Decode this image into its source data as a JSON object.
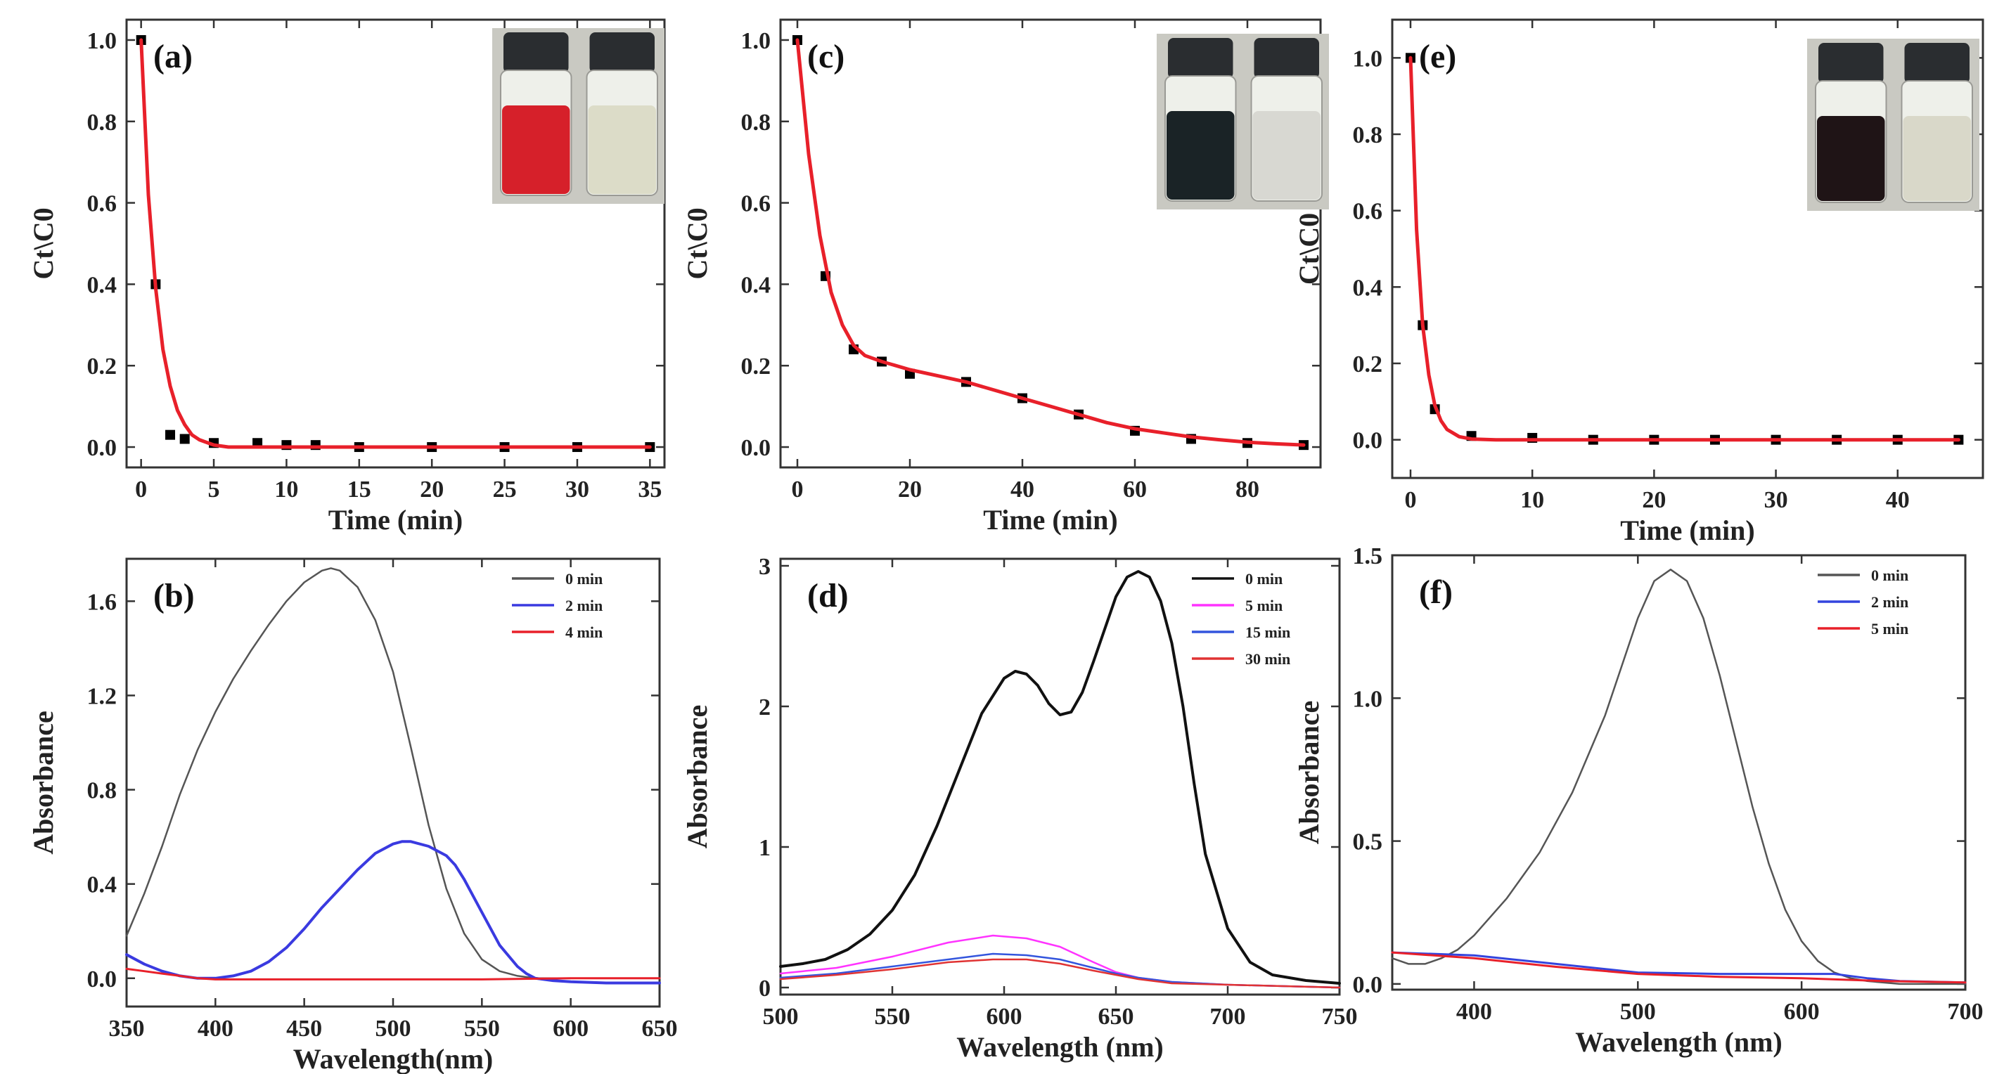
{
  "chart_data": [
    {
      "id": "a",
      "type": "scatter",
      "panel_label": "(a)",
      "xlabel": "Time (min)",
      "ylabel": "Ct\\C0",
      "xlim": [
        -1,
        36
      ],
      "ylim": [
        -0.05,
        1.05
      ],
      "xticks": [
        0,
        5,
        10,
        15,
        20,
        25,
        30,
        35
      ],
      "yticks": [
        0.0,
        0.2,
        0.4,
        0.6,
        0.8,
        1.0
      ],
      "xtick_labels": [
        "0",
        "5",
        "10",
        "15",
        "20",
        "25",
        "30",
        "35"
      ],
      "ytick_labels": [
        "0.0",
        "0.2",
        "0.4",
        "0.6",
        "0.8",
        "1.0"
      ],
      "series": [
        {
          "kind": "markers",
          "color": "#000000",
          "x": [
            0,
            1,
            2,
            3,
            5,
            8,
            10,
            12,
            15,
            20,
            25,
            30,
            35
          ],
          "y": [
            1.0,
            0.4,
            0.03,
            0.02,
            0.01,
            0.01,
            0.005,
            0.005,
            0.0,
            0.0,
            0.0,
            0.0,
            0.0
          ]
        },
        {
          "kind": "fit",
          "color": "#e8202a",
          "x": [
            0,
            0.5,
            1,
            1.5,
            2,
            2.5,
            3,
            3.5,
            4,
            5,
            6,
            8,
            10,
            15,
            20,
            25,
            30,
            35
          ],
          "y": [
            1.0,
            0.62,
            0.39,
            0.24,
            0.15,
            0.09,
            0.055,
            0.03,
            0.018,
            0.005,
            0.0,
            0.0,
            0.0,
            0.0,
            0.0,
            0.0,
            0.0,
            0.0
          ]
        }
      ],
      "inset": {
        "vials": [
          "#d6202a",
          "#dcdcc8"
        ]
      }
    },
    {
      "id": "c",
      "type": "scatter",
      "panel_label": "(c)",
      "xlabel": "Time (min)",
      "ylabel": "Ct\\C0",
      "xlim": [
        -3,
        93
      ],
      "ylim": [
        -0.05,
        1.05
      ],
      "xticks": [
        0,
        20,
        40,
        60,
        80
      ],
      "yticks": [
        0.0,
        0.2,
        0.4,
        0.6,
        0.8,
        1.0
      ],
      "xtick_labels": [
        "0",
        "20",
        "40",
        "60",
        "80"
      ],
      "ytick_labels": [
        "0.0",
        "0.2",
        "0.4",
        "0.6",
        "0.8",
        "1.0"
      ],
      "series": [
        {
          "kind": "markers",
          "color": "#000000",
          "x": [
            0,
            5,
            10,
            15,
            20,
            30,
            40,
            50,
            60,
            70,
            80,
            90
          ],
          "y": [
            1.0,
            0.42,
            0.24,
            0.21,
            0.18,
            0.16,
            0.12,
            0.08,
            0.04,
            0.02,
            0.01,
            0.005
          ]
        },
        {
          "kind": "fit",
          "color": "#e8202a",
          "x": [
            0,
            2,
            4,
            6,
            8,
            10,
            12,
            15,
            20,
            25,
            30,
            35,
            40,
            45,
            50,
            55,
            60,
            65,
            70,
            75,
            80,
            85,
            90
          ],
          "y": [
            1.0,
            0.72,
            0.52,
            0.38,
            0.3,
            0.25,
            0.225,
            0.21,
            0.19,
            0.175,
            0.16,
            0.14,
            0.12,
            0.1,
            0.08,
            0.06,
            0.045,
            0.035,
            0.025,
            0.018,
            0.012,
            0.008,
            0.005
          ]
        }
      ],
      "inset": {
        "vials": [
          "#1a2326",
          "#d8d8d2"
        ]
      }
    },
    {
      "id": "e",
      "type": "scatter",
      "panel_label": "(e)",
      "xlabel": "Time (min)",
      "ylabel": "Ct\\C0",
      "xlim": [
        -1.5,
        47
      ],
      "ylim": [
        -0.1,
        1.1
      ],
      "xticks": [
        0,
        10,
        20,
        30,
        40
      ],
      "yticks": [
        0.0,
        0.2,
        0.4,
        0.6,
        0.8,
        1.0
      ],
      "xtick_labels": [
        "0",
        "10",
        "20",
        "30",
        "40"
      ],
      "ytick_labels": [
        "0.0",
        "0.2",
        "0.4",
        "0.6",
        "0.8",
        "1.0"
      ],
      "series": [
        {
          "kind": "markers",
          "color": "#000000",
          "x": [
            0,
            1,
            2,
            5,
            10,
            15,
            20,
            25,
            30,
            35,
            40,
            45
          ],
          "y": [
            1.0,
            0.3,
            0.08,
            0.01,
            0.005,
            0.0,
            0.0,
            0.0,
            0.0,
            0.0,
            0.0,
            0.0
          ]
        },
        {
          "kind": "fit",
          "color": "#e8202a",
          "x": [
            0,
            0.5,
            1,
            1.5,
            2,
            2.5,
            3,
            4,
            5,
            7,
            10,
            20,
            30,
            40,
            45
          ],
          "y": [
            1.0,
            0.55,
            0.3,
            0.17,
            0.09,
            0.05,
            0.027,
            0.008,
            0.002,
            0.0,
            0.0,
            0.0,
            0.0,
            0.0,
            0.0
          ]
        }
      ],
      "inset": {
        "vials": [
          "#1f1416",
          "#d9d8c9"
        ]
      }
    },
    {
      "id": "b",
      "type": "line",
      "panel_label": "(b)",
      "xlabel": "Wavelength(nm)",
      "ylabel": "Absorbance",
      "xlim": [
        350,
        650
      ],
      "ylim": [
        -0.12,
        1.78
      ],
      "xticks": [
        350,
        400,
        450,
        500,
        550,
        600,
        650
      ],
      "yticks": [
        0.0,
        0.4,
        0.8,
        1.2,
        1.6
      ],
      "xtick_labels": [
        "350",
        "400",
        "450",
        "500",
        "550",
        "600",
        "650"
      ],
      "ytick_labels": [
        "0.0",
        "0.4",
        "0.8",
        "1.2",
        "1.6"
      ],
      "legend": {
        "position": "top-right"
      },
      "series": [
        {
          "name": "0 min",
          "color": "#555555",
          "width": 2.5,
          "x": [
            350,
            360,
            370,
            380,
            390,
            400,
            410,
            420,
            430,
            440,
            450,
            460,
            465,
            470,
            480,
            490,
            500,
            510,
            520,
            530,
            540,
            550,
            560,
            570,
            580,
            590,
            600,
            620,
            650
          ],
          "y": [
            0.18,
            0.36,
            0.56,
            0.78,
            0.97,
            1.13,
            1.27,
            1.39,
            1.5,
            1.6,
            1.68,
            1.73,
            1.74,
            1.73,
            1.66,
            1.52,
            1.3,
            0.98,
            0.65,
            0.38,
            0.19,
            0.08,
            0.03,
            0.01,
            0.0,
            0.0,
            0.0,
            0.0,
            0.0
          ]
        },
        {
          "name": "2 min",
          "color": "#3a3ae0",
          "width": 4,
          "x": [
            350,
            360,
            370,
            380,
            390,
            400,
            410,
            420,
            430,
            440,
            450,
            460,
            470,
            480,
            490,
            500,
            505,
            510,
            520,
            530,
            535,
            540,
            550,
            560,
            570,
            575,
            580,
            590,
            600,
            620,
            650
          ],
          "y": [
            0.1,
            0.06,
            0.03,
            0.01,
            0.0,
            0.0,
            0.01,
            0.03,
            0.07,
            0.13,
            0.21,
            0.3,
            0.38,
            0.46,
            0.53,
            0.57,
            0.58,
            0.58,
            0.56,
            0.52,
            0.48,
            0.42,
            0.28,
            0.14,
            0.05,
            0.02,
            0.0,
            -0.01,
            -0.015,
            -0.02,
            -0.02
          ]
        },
        {
          "name": "4 min",
          "color": "#e8202a",
          "width": 3,
          "x": [
            350,
            360,
            370,
            380,
            390,
            400,
            450,
            500,
            550,
            600,
            650
          ],
          "y": [
            0.04,
            0.03,
            0.02,
            0.01,
            0.0,
            -0.005,
            -0.005,
            -0.005,
            -0.005,
            0.0,
            0.0
          ]
        }
      ]
    },
    {
      "id": "d",
      "type": "line",
      "panel_label": "(d)",
      "xlabel": "Wavelength (nm)",
      "ylabel": "Absorbance",
      "xlim": [
        500,
        750
      ],
      "ylim": [
        -0.05,
        3.05
      ],
      "xticks": [
        500,
        550,
        600,
        650,
        700,
        750
      ],
      "yticks": [
        0,
        1,
        2,
        3
      ],
      "xtick_labels": [
        "500",
        "550",
        "600",
        "650",
        "700",
        "750"
      ],
      "ytick_labels": [
        "0",
        "1",
        "2",
        "3"
      ],
      "legend": {
        "position": "top-right"
      },
      "series": [
        {
          "name": "0 min",
          "color": "#111111",
          "width": 4,
          "x": [
            500,
            510,
            520,
            530,
            540,
            550,
            560,
            570,
            580,
            590,
            600,
            605,
            610,
            615,
            620,
            625,
            630,
            635,
            640,
            645,
            650,
            655,
            660,
            665,
            670,
            675,
            680,
            685,
            690,
            700,
            710,
            720,
            735,
            750
          ],
          "y": [
            0.15,
            0.17,
            0.2,
            0.27,
            0.38,
            0.55,
            0.8,
            1.15,
            1.55,
            1.95,
            2.2,
            2.25,
            2.23,
            2.15,
            2.02,
            1.94,
            1.96,
            2.1,
            2.32,
            2.55,
            2.78,
            2.92,
            2.96,
            2.92,
            2.75,
            2.45,
            2.0,
            1.45,
            0.95,
            0.42,
            0.18,
            0.09,
            0.05,
            0.03
          ]
        },
        {
          "name": "5 min",
          "color": "#ff33ff",
          "width": 2.5,
          "x": [
            500,
            525,
            550,
            575,
            595,
            610,
            625,
            640,
            650,
            660,
            675,
            700,
            725,
            750
          ],
          "y": [
            0.1,
            0.14,
            0.22,
            0.32,
            0.37,
            0.35,
            0.29,
            0.18,
            0.11,
            0.07,
            0.04,
            0.02,
            0.01,
            0.0
          ]
        },
        {
          "name": "15 min",
          "color": "#3355dd",
          "width": 2.5,
          "x": [
            500,
            525,
            550,
            575,
            595,
            610,
            625,
            640,
            650,
            660,
            675,
            700,
            725,
            750
          ],
          "y": [
            0.07,
            0.1,
            0.15,
            0.2,
            0.24,
            0.23,
            0.2,
            0.14,
            0.1,
            0.07,
            0.04,
            0.02,
            0.01,
            0.0
          ]
        },
        {
          "name": "30 min",
          "color": "#e03333",
          "width": 2.5,
          "x": [
            500,
            525,
            550,
            575,
            595,
            610,
            625,
            640,
            650,
            660,
            675,
            700,
            725,
            750
          ],
          "y": [
            0.06,
            0.09,
            0.13,
            0.18,
            0.2,
            0.2,
            0.17,
            0.12,
            0.09,
            0.06,
            0.03,
            0.02,
            0.01,
            0.0
          ]
        }
      ]
    },
    {
      "id": "f",
      "type": "line",
      "panel_label": "(f)",
      "xlabel": "Wavelength (nm)",
      "ylabel": "Absorbance",
      "xlim": [
        350,
        700
      ],
      "ylim": [
        -0.02,
        1.5
      ],
      "xticks": [
        400,
        500,
        600,
        700
      ],
      "yticks": [
        0.0,
        0.5,
        1.0,
        1.5
      ],
      "xtick_labels": [
        "400",
        "500",
        "600",
        "700"
      ],
      "ytick_labels": [
        "0.0",
        "0.5",
        "1.0",
        "1.5"
      ],
      "legend": {
        "position": "top-right"
      },
      "series": [
        {
          "name": "0 min",
          "color": "#555555",
          "width": 2.5,
          "x": [
            350,
            360,
            370,
            380,
            390,
            400,
            420,
            440,
            460,
            480,
            490,
            500,
            510,
            520,
            530,
            540,
            550,
            560,
            570,
            580,
            590,
            600,
            610,
            620,
            630,
            640,
            660,
            700
          ],
          "y": [
            0.09,
            0.07,
            0.07,
            0.09,
            0.12,
            0.17,
            0.3,
            0.46,
            0.67,
            0.94,
            1.11,
            1.28,
            1.41,
            1.45,
            1.41,
            1.28,
            1.08,
            0.85,
            0.62,
            0.42,
            0.26,
            0.15,
            0.08,
            0.04,
            0.02,
            0.01,
            0.0,
            0.0
          ]
        },
        {
          "name": "2 min",
          "color": "#3344dd",
          "width": 3,
          "x": [
            350,
            400,
            450,
            500,
            550,
            600,
            620,
            640,
            660,
            700
          ],
          "y": [
            0.11,
            0.1,
            0.07,
            0.04,
            0.035,
            0.035,
            0.035,
            0.02,
            0.01,
            0.005
          ]
        },
        {
          "name": "5 min",
          "color": "#e8202a",
          "width": 3,
          "x": [
            350,
            400,
            450,
            500,
            550,
            600,
            650,
            700
          ],
          "y": [
            0.11,
            0.09,
            0.06,
            0.035,
            0.025,
            0.02,
            0.01,
            0.005
          ]
        }
      ]
    }
  ]
}
